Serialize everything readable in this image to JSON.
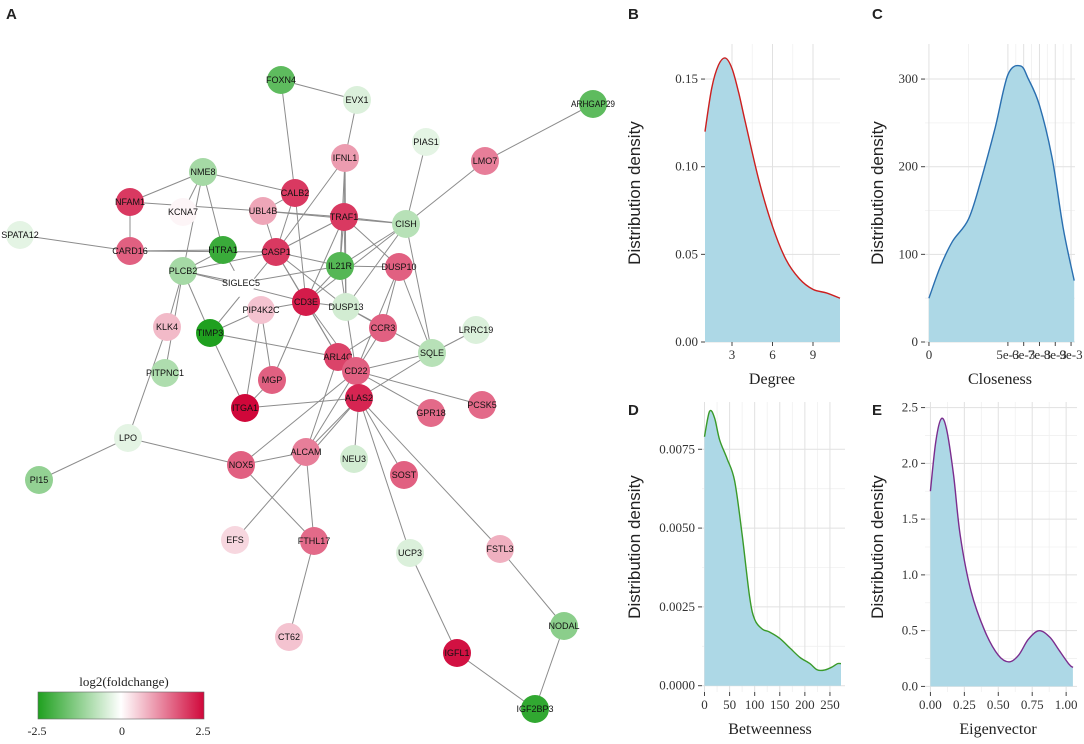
{
  "panel_labels": {
    "a": "A",
    "b": "B",
    "c": "C",
    "d": "D",
    "e": "E"
  },
  "network": {
    "legend": {
      "title": "log2(foldchange)",
      "ticks": [
        "-2.5",
        "0",
        "2.5"
      ],
      "low_color": "#1fa01f",
      "mid_color": "#ffffff",
      "high_color": "#d0073a"
    },
    "nodes": [
      {
        "id": "FOXN4",
        "fc": -1.8
      },
      {
        "id": "EVX1",
        "fc": -0.4
      },
      {
        "id": "ARHGAP29",
        "fc": -1.8
      },
      {
        "id": "PIAS1",
        "fc": -0.3
      },
      {
        "id": "IFNL1",
        "fc": 1.0
      },
      {
        "id": "LMO7",
        "fc": 1.3
      },
      {
        "id": "NME8",
        "fc": -1.0
      },
      {
        "id": "CALB2",
        "fc": 2.0
      },
      {
        "id": "NFAM1",
        "fc": 2.0
      },
      {
        "id": "KCNA7",
        "fc": 0.1
      },
      {
        "id": "UBL4B",
        "fc": 0.9
      },
      {
        "id": "TRAF1",
        "fc": 2.0
      },
      {
        "id": "CISH",
        "fc": -0.8
      },
      {
        "id": "SPATA12",
        "fc": -0.3
      },
      {
        "id": "HTRA1",
        "fc": -2.2
      },
      {
        "id": "CARD16",
        "fc": 1.6
      },
      {
        "id": "CASP1",
        "fc": 2.0
      },
      {
        "id": "IL21R",
        "fc": -1.9
      },
      {
        "id": "PLCB2",
        "fc": -1.0
      },
      {
        "id": "SIGLEC5",
        "fc": 0.0
      },
      {
        "id": "DUSP10",
        "fc": 1.6
      },
      {
        "id": "CD3E",
        "fc": 2.3
      },
      {
        "id": "DUSP13",
        "fc": -0.5
      },
      {
        "id": "PIP4K2C",
        "fc": 0.6
      },
      {
        "id": "KLK4",
        "fc": 0.7
      },
      {
        "id": "TIMP3",
        "fc": -2.5
      },
      {
        "id": "CCR3",
        "fc": 1.6
      },
      {
        "id": "LRRC19",
        "fc": -0.4
      },
      {
        "id": "SQLE",
        "fc": -0.8
      },
      {
        "id": "ARL4C",
        "fc": 1.9
      },
      {
        "id": "PITPNC1",
        "fc": -0.9
      },
      {
        "id": "MGP",
        "fc": 1.6
      },
      {
        "id": "CD22",
        "fc": 1.6
      },
      {
        "id": "ITGA1",
        "fc": 2.5
      },
      {
        "id": "ALAS2",
        "fc": 2.2
      },
      {
        "id": "GPR18",
        "fc": 1.5
      },
      {
        "id": "PCSK5",
        "fc": 1.5
      },
      {
        "id": "LPO",
        "fc": -0.3
      },
      {
        "id": "ALCAM",
        "fc": 1.3
      },
      {
        "id": "NOX5",
        "fc": 1.6
      },
      {
        "id": "NEU3",
        "fc": -0.5
      },
      {
        "id": "SOST",
        "fc": 1.6
      },
      {
        "id": "PI15",
        "fc": -1.2
      },
      {
        "id": "EFS",
        "fc": 0.4
      },
      {
        "id": "FTHL17",
        "fc": 1.5
      },
      {
        "id": "UCP3",
        "fc": -0.4
      },
      {
        "id": "FSTL3",
        "fc": 0.8
      },
      {
        "id": "NODAL",
        "fc": -1.3
      },
      {
        "id": "CT62",
        "fc": 0.6
      },
      {
        "id": "IGFL1",
        "fc": 2.4
      },
      {
        "id": "IGF2BP3",
        "fc": -2.3
      }
    ],
    "edges": [
      [
        "FOXN4",
        "EVX1"
      ],
      [
        "FOXN4",
        "CALB2"
      ],
      [
        "EVX1",
        "IFNL1"
      ],
      [
        "ARHGAP29",
        "LMO7"
      ],
      [
        "LMO7",
        "CISH"
      ],
      [
        "PIAS1",
        "CISH"
      ],
      [
        "IFNL1",
        "TRAF1"
      ],
      [
        "IFNL1",
        "CASP1"
      ],
      [
        "IFNL1",
        "IL21R"
      ],
      [
        "IFNL1",
        "DUSP13"
      ],
      [
        "NME8",
        "CALB2"
      ],
      [
        "NME8",
        "HTRA1"
      ],
      [
        "NME8",
        "NFAM1"
      ],
      [
        "NME8",
        "KCNA7"
      ],
      [
        "NME8",
        "PLCB2"
      ],
      [
        "NFAM1",
        "CARD16"
      ],
      [
        "NFAM1",
        "UBL4B"
      ],
      [
        "CALB2",
        "UBL4B"
      ],
      [
        "CALB2",
        "CD3E"
      ],
      [
        "CALB2",
        "CASP1"
      ],
      [
        "UBL4B",
        "TRAF1"
      ],
      [
        "UBL4B",
        "CISH"
      ],
      [
        "UBL4B",
        "CASP1"
      ],
      [
        "TRAF1",
        "CISH"
      ],
      [
        "TRAF1",
        "CASP1"
      ],
      [
        "TRAF1",
        "IL21R"
      ],
      [
        "TRAF1",
        "DUSP10"
      ],
      [
        "TRAF1",
        "DUSP13"
      ],
      [
        "TRAF1",
        "CD3E"
      ],
      [
        "CISH",
        "SQLE"
      ],
      [
        "CISH",
        "IL21R"
      ],
      [
        "CISH",
        "CD3E"
      ],
      [
        "CISH",
        "DUSP13"
      ],
      [
        "SPATA12",
        "CARD16"
      ],
      [
        "CARD16",
        "HTRA1"
      ],
      [
        "CARD16",
        "CASP1"
      ],
      [
        "HTRA1",
        "PLCB2"
      ],
      [
        "HTRA1",
        "SIGLEC5"
      ],
      [
        "CASP1",
        "IL21R"
      ],
      [
        "CASP1",
        "CD3E"
      ],
      [
        "CASP1",
        "DUSP13"
      ],
      [
        "CASP1",
        "PLCB2"
      ],
      [
        "CASP1",
        "TIMP3"
      ],
      [
        "CASP1",
        "ARL4C"
      ],
      [
        "IL21R",
        "CD3E"
      ],
      [
        "IL21R",
        "DUSP10"
      ],
      [
        "IL21R",
        "DUSP13"
      ],
      [
        "IL21R",
        "SIGLEC5"
      ],
      [
        "PLCB2",
        "KLK4"
      ],
      [
        "PLCB2",
        "PITPNC1"
      ],
      [
        "PLCB2",
        "SIGLEC5"
      ],
      [
        "PLCB2",
        "TIMP3"
      ],
      [
        "PLCB2",
        "CD3E"
      ],
      [
        "DUSP10",
        "CD22"
      ],
      [
        "DUSP10",
        "CCR3"
      ],
      [
        "DUSP10",
        "SQLE"
      ],
      [
        "CD3E",
        "DUSP13"
      ],
      [
        "CD3E",
        "PIP4K2C"
      ],
      [
        "CD3E",
        "ARL4C"
      ],
      [
        "CD3E",
        "CD22"
      ],
      [
        "CD3E",
        "MGP"
      ],
      [
        "DUSP13",
        "CCR3"
      ],
      [
        "DUSP13",
        "CD22"
      ],
      [
        "DUSP13",
        "SQLE"
      ],
      [
        "PIP4K2C",
        "TIMP3"
      ],
      [
        "PIP4K2C",
        "MGP"
      ],
      [
        "PIP4K2C",
        "ITGA1"
      ],
      [
        "KLK4",
        "LPO"
      ],
      [
        "TIMP3",
        "ITGA1"
      ],
      [
        "TIMP3",
        "ARL4C"
      ],
      [
        "CCR3",
        "CD22"
      ],
      [
        "CCR3",
        "ARL4C"
      ],
      [
        "SQLE",
        "LRRC19"
      ],
      [
        "SQLE",
        "CD22"
      ],
      [
        "SQLE",
        "ALAS2"
      ],
      [
        "ARL4C",
        "CD22"
      ],
      [
        "ARL4C",
        "ALCAM"
      ],
      [
        "CD22",
        "ALAS2"
      ],
      [
        "CD22",
        "GPR18"
      ],
      [
        "CD22",
        "PCSK5"
      ],
      [
        "CD22",
        "ALCAM"
      ],
      [
        "CD22",
        "NOX5"
      ],
      [
        "MGP",
        "ITGA1"
      ],
      [
        "ITGA1",
        "ALAS2"
      ],
      [
        "ALAS2",
        "NEU3"
      ],
      [
        "ALAS2",
        "SOST"
      ],
      [
        "ALAS2",
        "UCP3"
      ],
      [
        "ALAS2",
        "FSTL3"
      ],
      [
        "ALAS2",
        "ALCAM"
      ],
      [
        "ALAS2",
        "EFS"
      ],
      [
        "LPO",
        "PI15"
      ],
      [
        "LPO",
        "NOX5"
      ],
      [
        "ALCAM",
        "NOX5"
      ],
      [
        "ALCAM",
        "FTHL17"
      ],
      [
        "NOX5",
        "FTHL17"
      ],
      [
        "FTHL17",
        "CT62"
      ],
      [
        "UCP3",
        "IGFL1"
      ],
      [
        "IGFL1",
        "IGF2BP3"
      ],
      [
        "FSTL3",
        "NODAL"
      ],
      [
        "NODAL",
        "IGF2BP3"
      ]
    ]
  },
  "chart_data": [
    {
      "type": "area",
      "panel": "B",
      "xlabel": "Degree",
      "ylabel": "Distribution density",
      "xlim": [
        1,
        11
      ],
      "ylim": [
        0,
        0.17
      ],
      "xticks": [
        3,
        6,
        9
      ],
      "xtick_labels": [
        "3",
        "6",
        "9"
      ],
      "yticks": [
        0,
        0.05,
        0.1,
        0.15
      ],
      "ytick_labels": [
        "0.00",
        "0.05",
        "0.10",
        "0.15"
      ],
      "line_color": "#cc1f1f",
      "fill_color": "#add8e6",
      "x": [
        1,
        1.5,
        2,
        2.5,
        3,
        3.5,
        4,
        5,
        6,
        7,
        8,
        9,
        10,
        11
      ],
      "y": [
        0.12,
        0.145,
        0.158,
        0.162,
        0.156,
        0.142,
        0.125,
        0.092,
        0.066,
        0.047,
        0.036,
        0.03,
        0.028,
        0.025
      ]
    },
    {
      "type": "area",
      "panel": "C",
      "xlabel": "Closeness",
      "ylabel": "Distribution density",
      "xlim": [
        -0.00025,
        0.00925
      ],
      "ylim": [
        0,
        340
      ],
      "xticks": [
        0,
        0.005,
        0.006,
        0.007,
        0.008,
        0.009
      ],
      "xtick_labels": [
        "0",
        "5e-3",
        "6e-3",
        "7e-3",
        "8e-3",
        "9e-3"
      ],
      "yticks": [
        0,
        100,
        200,
        300
      ],
      "ytick_labels": [
        "0",
        "100",
        "200",
        "300"
      ],
      "line_color": "#2a6fb0",
      "fill_color": "#add8e6",
      "x": [
        0,
        0.0007,
        0.0015,
        0.0025,
        0.0033,
        0.0042,
        0.005,
        0.0058,
        0.0063,
        0.007,
        0.0078,
        0.0085,
        0.0092
      ],
      "y": [
        50,
        85,
        115,
        140,
        185,
        245,
        305,
        315,
        300,
        270,
        210,
        130,
        70
      ]
    },
    {
      "type": "area",
      "panel": "D",
      "xlabel": "Betweenness",
      "ylabel": "Distribution density",
      "xlim": [
        -5,
        280
      ],
      "ylim": [
        -0.0002,
        0.009
      ],
      "xticks": [
        0,
        50,
        100,
        150,
        200,
        250
      ],
      "xtick_labels": [
        "0",
        "50",
        "100",
        "150",
        "200",
        "250"
      ],
      "yticks": [
        0,
        0.0025,
        0.005,
        0.0075
      ],
      "ytick_labels": [
        "0.0000",
        "0.0025",
        "0.0050",
        "0.0075"
      ],
      "line_color": "#3a9a2a",
      "fill_color": "#add8e6",
      "x": [
        0,
        10,
        20,
        30,
        45,
        60,
        75,
        90,
        100,
        115,
        130,
        150,
        170,
        190,
        210,
        225,
        240,
        255,
        265,
        272
      ],
      "y": [
        0.0079,
        0.0087,
        0.0085,
        0.0078,
        0.0072,
        0.0065,
        0.0048,
        0.0028,
        0.0021,
        0.0018,
        0.0017,
        0.0015,
        0.0012,
        0.0009,
        0.0007,
        0.0005,
        0.0005,
        0.0006,
        0.0007,
        0.0007
      ]
    },
    {
      "type": "area",
      "panel": "E",
      "xlabel": "Eigenvector",
      "ylabel": "Distribution density",
      "xlim": [
        -0.04,
        1.08
      ],
      "ylim": [
        -0.05,
        2.55
      ],
      "xticks": [
        0,
        0.25,
        0.5,
        0.75,
        1
      ],
      "xtick_labels": [
        "0.00",
        "0.25",
        "0.50",
        "0.75",
        "1.00"
      ],
      "yticks": [
        0,
        0.5,
        1,
        1.5,
        2,
        2.5
      ],
      "ytick_labels": [
        "0.0",
        "0.5",
        "1.0",
        "1.5",
        "2.0",
        "2.5"
      ],
      "line_color": "#7b2d8e",
      "fill_color": "#add8e6",
      "x": [
        0,
        0.04,
        0.08,
        0.12,
        0.17,
        0.22,
        0.3,
        0.4,
        0.5,
        0.58,
        0.65,
        0.72,
        0.8,
        0.88,
        0.95,
        1.02,
        1.05
      ],
      "y": [
        1.75,
        2.2,
        2.4,
        2.3,
        1.9,
        1.35,
        0.85,
        0.5,
        0.28,
        0.22,
        0.28,
        0.42,
        0.5,
        0.44,
        0.32,
        0.2,
        0.17
      ]
    }
  ]
}
